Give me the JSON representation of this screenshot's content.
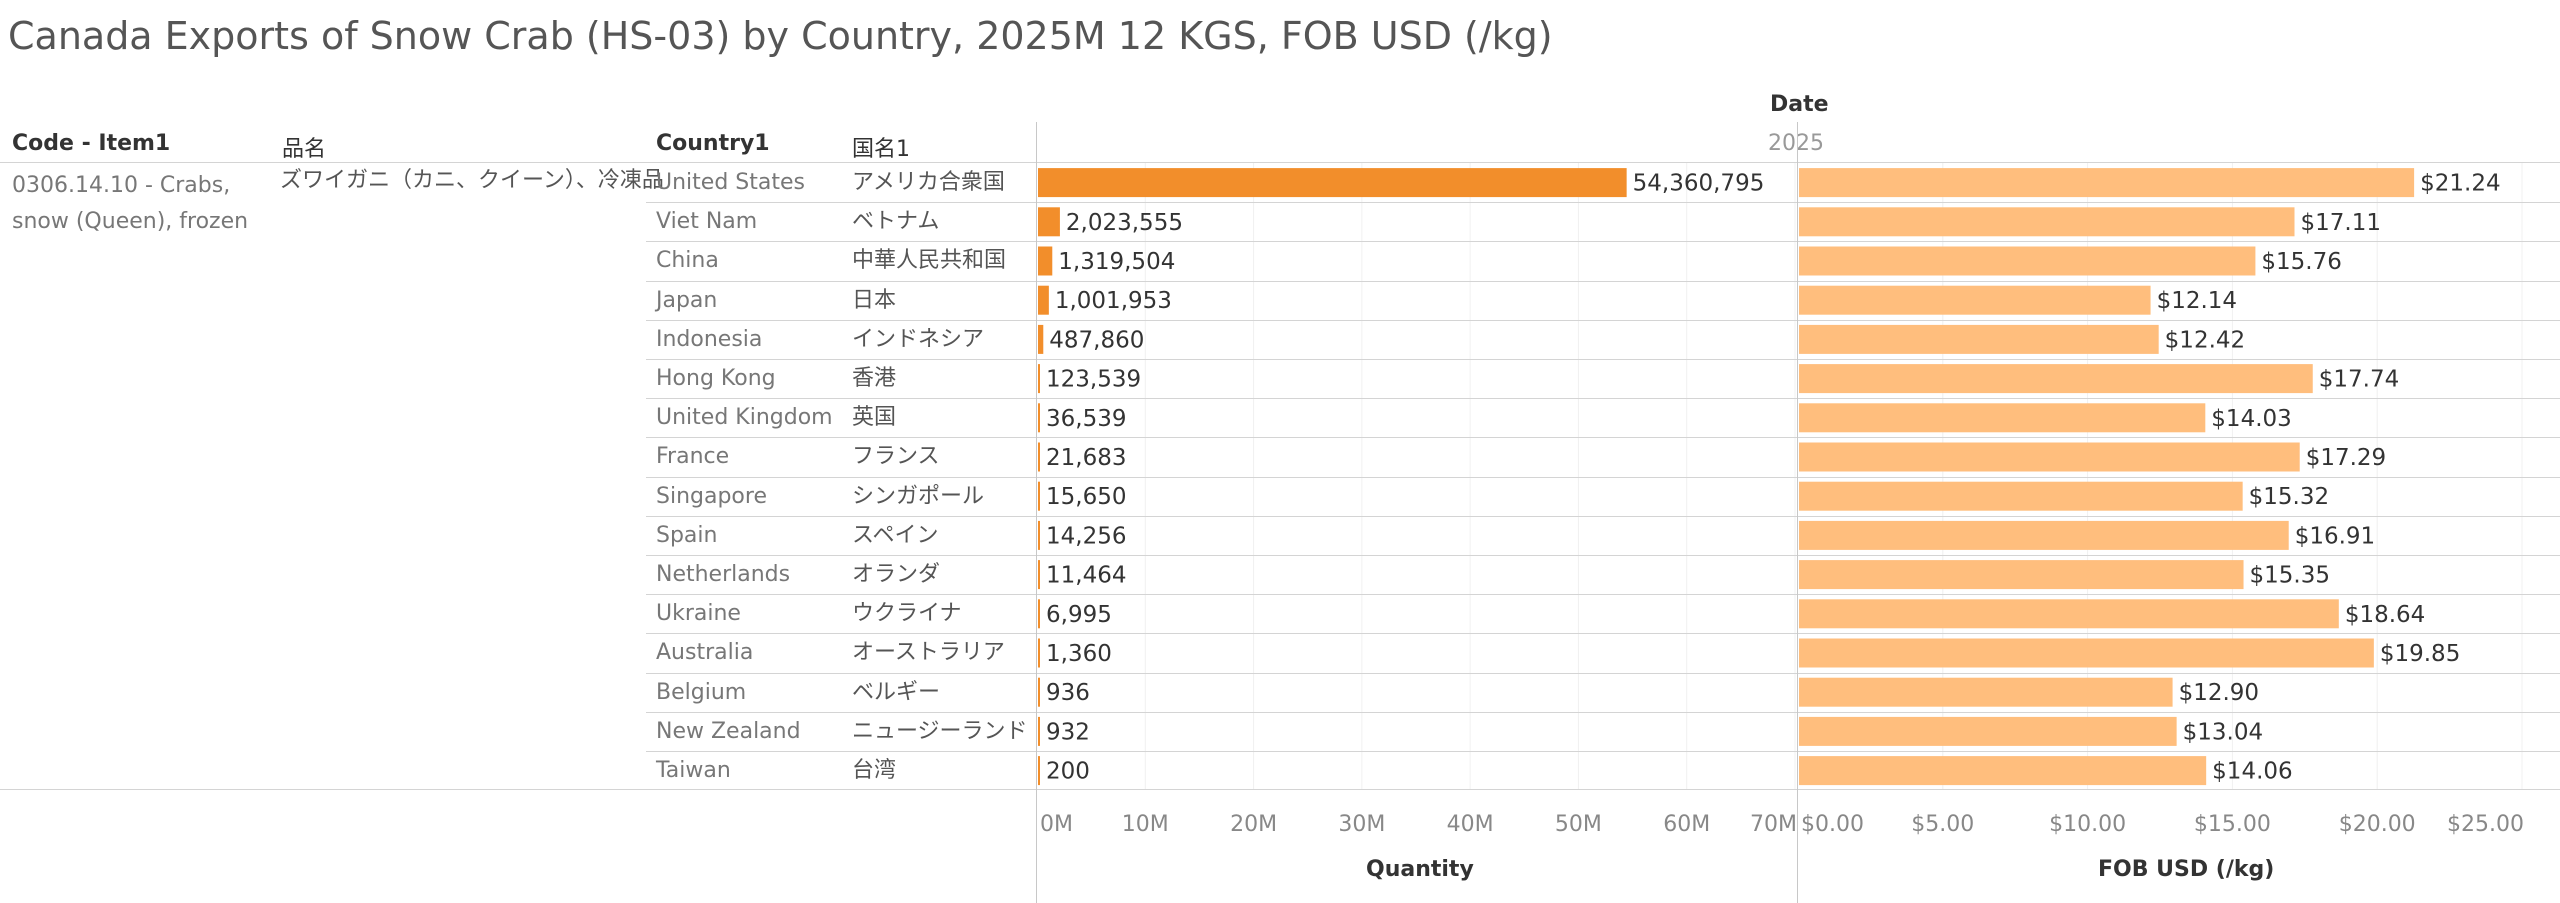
{
  "title": "Canada Exports of Snow Crab (HS-03) by Country, 2025M 12 KGS, FOB USD (/kg)",
  "headers": {
    "code": "Code - Item1",
    "item_name": "品名",
    "country": "Country1",
    "country_jp": "国名1",
    "date": "Date",
    "year": "2025"
  },
  "item": {
    "code": "0306.14.10 - Crabs, snow (Queen), frozen",
    "name": "ズワイガニ（カニ、クイーン）、冷凍品"
  },
  "rows": [
    {
      "country": "United States",
      "country_jp": "アメリカ合衆国"
    },
    {
      "country": "Viet Nam",
      "country_jp": "ベトナム"
    },
    {
      "country": "China",
      "country_jp": "中華人民共和国"
    },
    {
      "country": "Japan",
      "country_jp": "日本"
    },
    {
      "country": "Indonesia",
      "country_jp": "インドネシア"
    },
    {
      "country": "Hong Kong",
      "country_jp": "香港"
    },
    {
      "country": "United Kingdom",
      "country_jp": "英国"
    },
    {
      "country": "France",
      "country_jp": "フランス"
    },
    {
      "country": "Singapore",
      "country_jp": "シンガポール"
    },
    {
      "country": "Spain",
      "country_jp": "スペイン"
    },
    {
      "country": "Netherlands",
      "country_jp": "オランダ"
    },
    {
      "country": "Ukraine",
      "country_jp": "ウクライナ"
    },
    {
      "country": "Australia",
      "country_jp": "オーストラリア"
    },
    {
      "country": "Belgium",
      "country_jp": "ベルギー"
    },
    {
      "country": "New Zealand",
      "country_jp": "ニュージーランド"
    },
    {
      "country": "Taiwan",
      "country_jp": "台湾"
    }
  ],
  "colors": {
    "quantity_bar": "#F28E2B",
    "price_bar": "#FFBE7D"
  },
  "chart_data": [
    {
      "type": "bar",
      "orientation": "horizontal",
      "xlabel": "Quantity",
      "xlim": [
        0,
        70000000
      ],
      "ticks": [
        0,
        10000000,
        20000000,
        30000000,
        40000000,
        50000000,
        60000000,
        70000000
      ],
      "tick_labels": [
        "0M",
        "10M",
        "20M",
        "30M",
        "40M",
        "50M",
        "60M",
        "70M"
      ],
      "categories": [
        "United States",
        "Viet Nam",
        "China",
        "Japan",
        "Indonesia",
        "Hong Kong",
        "United Kingdom",
        "France",
        "Singapore",
        "Spain",
        "Netherlands",
        "Ukraine",
        "Australia",
        "Belgium",
        "New Zealand",
        "Taiwan"
      ],
      "values": [
        54360795,
        2023555,
        1319504,
        1001953,
        487860,
        123539,
        36539,
        21683,
        15650,
        14256,
        11464,
        6995,
        1360,
        936,
        932,
        200
      ],
      "labels": [
        "54,360,795",
        "2,023,555",
        "1,319,504",
        "1,001,953",
        "487,860",
        "123,539",
        "36,539",
        "21,683",
        "15,650",
        "14,256",
        "11,464",
        "6,995",
        "1,360",
        "936",
        "932",
        "200"
      ]
    },
    {
      "type": "bar",
      "orientation": "horizontal",
      "xlabel": "FOB USD (/kg)",
      "xlim": [
        0,
        25
      ],
      "ticks": [
        0,
        5,
        10,
        15,
        20,
        25
      ],
      "tick_labels": [
        "$0.00",
        "$5.00",
        "$10.00",
        "$15.00",
        "$20.00",
        "$25.00"
      ],
      "categories": [
        "United States",
        "Viet Nam",
        "China",
        "Japan",
        "Indonesia",
        "Hong Kong",
        "United Kingdom",
        "France",
        "Singapore",
        "Spain",
        "Netherlands",
        "Ukraine",
        "Australia",
        "Belgium",
        "New Zealand",
        "Taiwan"
      ],
      "values": [
        21.24,
        17.11,
        15.76,
        12.14,
        12.42,
        17.74,
        14.03,
        17.29,
        15.32,
        16.91,
        15.35,
        18.64,
        19.85,
        12.9,
        13.04,
        14.06
      ],
      "labels": [
        "$21.24",
        "$17.11",
        "$15.76",
        "$12.14",
        "$12.42",
        "$17.74",
        "$14.03",
        "$17.29",
        "$15.32",
        "$16.91",
        "$15.35",
        "$18.64",
        "$19.85",
        "$12.90",
        "$13.04",
        "$14.06"
      ]
    }
  ]
}
